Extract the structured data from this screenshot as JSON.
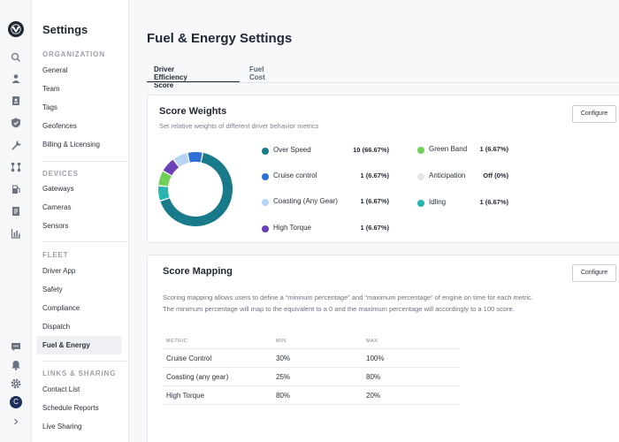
{
  "rail": {
    "icons": [
      "search-icon",
      "user-icon",
      "id-badge-icon",
      "shield-icon",
      "wrench-icon",
      "route-icon",
      "fuel-icon",
      "document-icon",
      "chart-icon",
      "chat-icon",
      "bell-icon",
      "gear-icon"
    ],
    "avatar_letter": "C"
  },
  "nav": {
    "title": "Settings",
    "sections": [
      {
        "label": "ORGANIZATION",
        "items": [
          "General",
          "Team",
          "Tags",
          "Geofences",
          "Billing & Licensing"
        ]
      },
      {
        "label": "DEVICES",
        "items": [
          "Gateways",
          "Cameras",
          "Sensors"
        ]
      },
      {
        "label": "FLEET",
        "items": [
          "Driver App",
          "Safety",
          "Compliance",
          "Dispatch",
          "Fuel & Energy"
        ]
      },
      {
        "label": "LINKS & SHARING",
        "items": [
          "Contact List",
          "Schedule Reports",
          "Live Sharing"
        ]
      }
    ],
    "active_item": "Fuel & Energy"
  },
  "page": {
    "title": "Fuel & Energy Settings",
    "tabs": [
      "Driver Efficiency Score",
      "Fuel Cost"
    ],
    "active_tab": "Driver Efficiency Score"
  },
  "score_weights": {
    "title": "Score Weights",
    "subtitle": "Set relative weights of different driver behavior metrics",
    "configure_label": "Configure",
    "metrics_left": [
      {
        "label": "Over Speed",
        "value": "10 (66.67%)",
        "color": "#197a8a"
      },
      {
        "label": "Cruise control",
        "value": "1 (6.67%)",
        "color": "#2f6fd6"
      },
      {
        "label": "Coasting (Any Gear)",
        "value": "1 (6.67%)",
        "color": "#b9d3f3"
      },
      {
        "label": "High Torque",
        "value": "1 (6.67%)",
        "color": "#6a3fb8"
      }
    ],
    "metrics_right": [
      {
        "label": "Green Band",
        "value": "1 (6.67%)",
        "color": "#6fcf57"
      },
      {
        "label": "Anticipation",
        "value": "Off (0%)",
        "color": "#e4e6ea"
      },
      {
        "label": "Idling",
        "value": "1 (6.67%)",
        "color": "#26b5b0"
      }
    ]
  },
  "score_mapping": {
    "title": "Score Mapping",
    "configure_label": "Configure",
    "description_1": "Scoring mapping allows users to define a “mininum percentage” and “maximum percentage” of engine on time for each metric.",
    "description_2": "The minimum percentage will map to the equivalent to a 0 and the maximum percentage will accordingly to a 100 score.",
    "columns": [
      "METRIC",
      "MIN",
      "MAX"
    ],
    "rows": [
      {
        "metric": "Cruise Control",
        "min": "30%",
        "max": "100%"
      },
      {
        "metric": "Coasting (any gear)",
        "min": "25%",
        "max": "80%"
      },
      {
        "metric": "High Torque",
        "min": "80%",
        "max": "20%"
      }
    ]
  },
  "chart_data": {
    "type": "pie",
    "title": "Score Weights",
    "categories": [
      "Over Speed",
      "Idling",
      "Green Band",
      "High Torque",
      "Coasting (Any Gear)",
      "Cruise control",
      "Anticipation"
    ],
    "values": [
      10,
      1,
      1,
      1,
      1,
      1,
      0
    ],
    "colors": [
      "#197a8a",
      "#26b5b0",
      "#6fcf57",
      "#6a3fb8",
      "#b9d3f3",
      "#2f6fd6",
      "#e4e6ea"
    ]
  }
}
